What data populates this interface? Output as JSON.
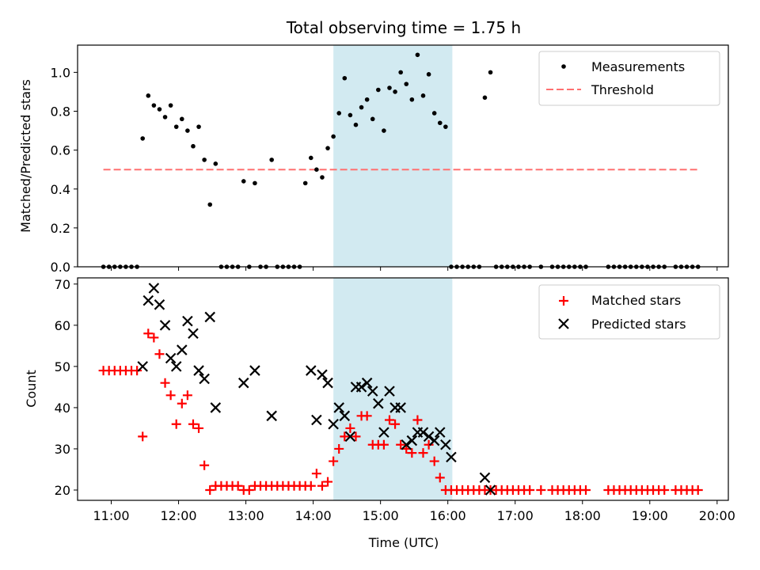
{
  "figure": {
    "title": "Total observing time = 1.75 h",
    "xlabel": "Time (UTC)"
  },
  "chart_data": [
    {
      "type": "scatter",
      "title": "Total observing time = 1.75 h",
      "xlabel": "",
      "ylabel": "Matched/Predicted stars",
      "xlim": [
        "10:30",
        "20:10"
      ],
      "ylim": [
        0,
        1.14
      ],
      "xticks": [
        "11:00",
        "12:00",
        "13:00",
        "14:00",
        "15:00",
        "16:00",
        "17:00",
        "18:00",
        "19:00",
        "20:00"
      ],
      "yticks": [
        "0.0",
        "0.2",
        "0.4",
        "0.6",
        "0.8",
        "1.0"
      ],
      "highlight_span": {
        "from": "14:18",
        "to": "16:04",
        "color": "#add8e6"
      },
      "legend": {
        "position": "top-right",
        "entries": [
          "Measurements",
          "Threshold"
        ]
      },
      "series": [
        {
          "name": "Measurements",
          "marker": "dot",
          "color": "#000000",
          "x": [
            "10:53",
            "10:58",
            "11:03",
            "11:08",
            "11:13",
            "11:18",
            "11:23",
            "11:28",
            "11:33",
            "11:38",
            "11:43",
            "11:48",
            "11:53",
            "11:58",
            "12:03",
            "12:08",
            "12:13",
            "12:18",
            "12:23",
            "12:28",
            "12:33",
            "12:38",
            "12:43",
            "12:48",
            "12:53",
            "12:58",
            "13:03",
            "13:08",
            "13:13",
            "13:18",
            "13:23",
            "13:28",
            "13:33",
            "13:38",
            "13:43",
            "13:48",
            "13:53",
            "13:58",
            "14:03",
            "14:08",
            "14:13",
            "14:18",
            "14:23",
            "14:28",
            "14:33",
            "14:38",
            "14:43",
            "14:48",
            "14:53",
            "14:58",
            "15:03",
            "15:08",
            "15:13",
            "15:18",
            "15:23",
            "15:28",
            "15:33",
            "15:38",
            "15:43",
            "15:48",
            "15:53",
            "15:58",
            "16:03",
            "16:08",
            "16:13",
            "16:18",
            "16:23",
            "16:28",
            "16:33",
            "16:38",
            "16:43",
            "16:48",
            "16:53",
            "16:58",
            "17:03",
            "17:08",
            "17:13",
            "17:23",
            "17:33",
            "17:38",
            "17:43",
            "17:48",
            "17:53",
            "17:58",
            "18:03",
            "18:23",
            "18:28",
            "18:33",
            "18:38",
            "18:43",
            "18:48",
            "18:53",
            "18:58",
            "19:03",
            "19:08",
            "19:13",
            "19:23",
            "19:28",
            "19:33",
            "19:38",
            "19:43"
          ],
          "y": [
            0,
            0,
            0,
            0,
            0,
            0,
            0,
            0.66,
            0.88,
            0.83,
            0.81,
            0.77,
            0.83,
            0.72,
            0.76,
            0.7,
            0.62,
            0.72,
            0.55,
            0.32,
            0.53,
            0,
            0,
            0,
            0,
            0.44,
            0,
            0.43,
            0,
            0,
            0.55,
            0,
            0,
            0,
            0,
            0,
            0.43,
            0.56,
            0.5,
            0.46,
            0.61,
            0.67,
            0.79,
            0.97,
            0.78,
            0.73,
            0.82,
            0.86,
            0.76,
            0.91,
            0.7,
            0.92,
            0.9,
            1.0,
            0.94,
            0.86,
            1.09,
            0.88,
            0.99,
            0.79,
            0.74,
            0.72,
            0,
            0,
            0,
            0,
            0,
            0,
            0.87,
            1.0,
            0,
            0,
            0,
            0,
            0,
            0,
            0,
            0,
            0,
            0,
            0,
            0,
            0,
            0,
            0,
            0,
            0,
            0,
            0,
            0,
            0,
            0,
            0,
            0,
            0,
            0,
            0,
            0,
            0,
            0,
            0
          ]
        },
        {
          "name": "Threshold",
          "style": "dashed",
          "color": "#ff7070",
          "x": [
            "10:53",
            "19:43"
          ],
          "y": [
            0.5,
            0.5
          ]
        }
      ]
    },
    {
      "type": "scatter",
      "title": "",
      "xlabel": "Time (UTC)",
      "ylabel": "Count",
      "xlim": [
        "10:30",
        "20:10"
      ],
      "ylim": [
        17.5,
        71.5
      ],
      "xticks": [
        "11:00",
        "12:00",
        "13:00",
        "14:00",
        "15:00",
        "16:00",
        "17:00",
        "18:00",
        "19:00",
        "20:00"
      ],
      "yticks": [
        "20",
        "30",
        "40",
        "50",
        "60",
        "70"
      ],
      "highlight_span": {
        "from": "14:18",
        "to": "16:04",
        "color": "#add8e6"
      },
      "legend": {
        "position": "top-right",
        "entries": [
          "Matched stars",
          "Predicted stars"
        ]
      },
      "series": [
        {
          "name": "Matched stars",
          "marker": "plus",
          "color": "#ff0000",
          "x": [
            "10:53",
            "10:58",
            "11:03",
            "11:08",
            "11:13",
            "11:18",
            "11:23",
            "11:28",
            "11:33",
            "11:38",
            "11:43",
            "11:48",
            "11:53",
            "11:58",
            "12:03",
            "12:08",
            "12:13",
            "12:18",
            "12:23",
            "12:28",
            "12:33",
            "12:38",
            "12:43",
            "12:48",
            "12:53",
            "12:58",
            "13:03",
            "13:08",
            "13:13",
            "13:18",
            "13:23",
            "13:28",
            "13:33",
            "13:38",
            "13:43",
            "13:48",
            "13:53",
            "13:58",
            "14:03",
            "14:08",
            "14:13",
            "14:18",
            "14:23",
            "14:28",
            "14:33",
            "14:38",
            "14:43",
            "14:48",
            "14:53",
            "14:58",
            "15:03",
            "15:08",
            "15:13",
            "15:18",
            "15:23",
            "15:28",
            "15:33",
            "15:38",
            "15:43",
            "15:48",
            "15:53",
            "15:58",
            "16:03",
            "16:08",
            "16:13",
            "16:18",
            "16:23",
            "16:28",
            "16:33",
            "16:38",
            "16:43",
            "16:48",
            "16:53",
            "16:58",
            "17:03",
            "17:08",
            "17:13",
            "17:23",
            "17:33",
            "17:38",
            "17:43",
            "17:48",
            "17:53",
            "17:58",
            "18:03",
            "18:23",
            "18:28",
            "18:33",
            "18:38",
            "18:43",
            "18:48",
            "18:53",
            "18:58",
            "19:03",
            "19:08",
            "19:13",
            "19:23",
            "19:28",
            "19:33",
            "19:38",
            "19:43"
          ],
          "y": [
            49,
            49,
            49,
            49,
            49,
            49,
            49,
            33,
            58,
            57,
            53,
            46,
            43,
            36,
            41,
            43,
            36,
            35,
            26,
            20,
            21,
            21,
            21,
            21,
            21,
            20,
            20,
            21,
            21,
            21,
            21,
            21,
            21,
            21,
            21,
            21,
            21,
            21,
            24,
            21,
            22,
            27,
            30,
            33,
            35,
            33,
            38,
            38,
            31,
            31,
            31,
            37,
            36,
            31,
            30,
            29,
            37,
            29,
            31,
            27,
            23,
            20,
            20,
            20,
            20,
            20,
            20,
            20,
            20,
            20,
            20,
            20,
            20,
            20,
            20,
            20,
            20,
            20,
            20,
            20,
            20,
            20,
            20,
            20,
            20,
            20,
            20,
            20,
            20,
            20,
            20,
            20,
            20,
            20,
            20,
            20,
            20,
            20,
            20,
            20,
            20
          ]
        },
        {
          "name": "Predicted stars",
          "marker": "x",
          "color": "#000000",
          "x": [
            "11:28",
            "11:33",
            "11:38",
            "11:43",
            "11:48",
            "11:53",
            "11:58",
            "12:03",
            "12:08",
            "12:13",
            "12:18",
            "12:23",
            "12:28",
            "12:33",
            "12:58",
            "13:08",
            "13:23",
            "13:58",
            "14:03",
            "14:08",
            "14:13",
            "14:18",
            "14:23",
            "14:28",
            "14:33",
            "14:38",
            "14:43",
            "14:48",
            "14:53",
            "14:58",
            "15:03",
            "15:08",
            "15:13",
            "15:18",
            "15:23",
            "15:28",
            "15:33",
            "15:38",
            "15:43",
            "15:48",
            "15:53",
            "15:58",
            "16:03",
            "16:33",
            "16:38"
          ],
          "y": [
            50,
            66,
            69,
            65,
            60,
            52,
            50,
            54,
            61,
            58,
            49,
            47,
            62,
            40,
            46,
            49,
            38,
            49,
            37,
            48,
            46,
            36,
            40,
            38,
            33,
            45,
            45,
            46,
            44,
            41,
            34,
            44,
            40,
            40,
            31,
            32,
            34,
            34,
            33,
            32,
            34,
            31,
            28,
            23,
            20
          ]
        }
      ]
    }
  ]
}
